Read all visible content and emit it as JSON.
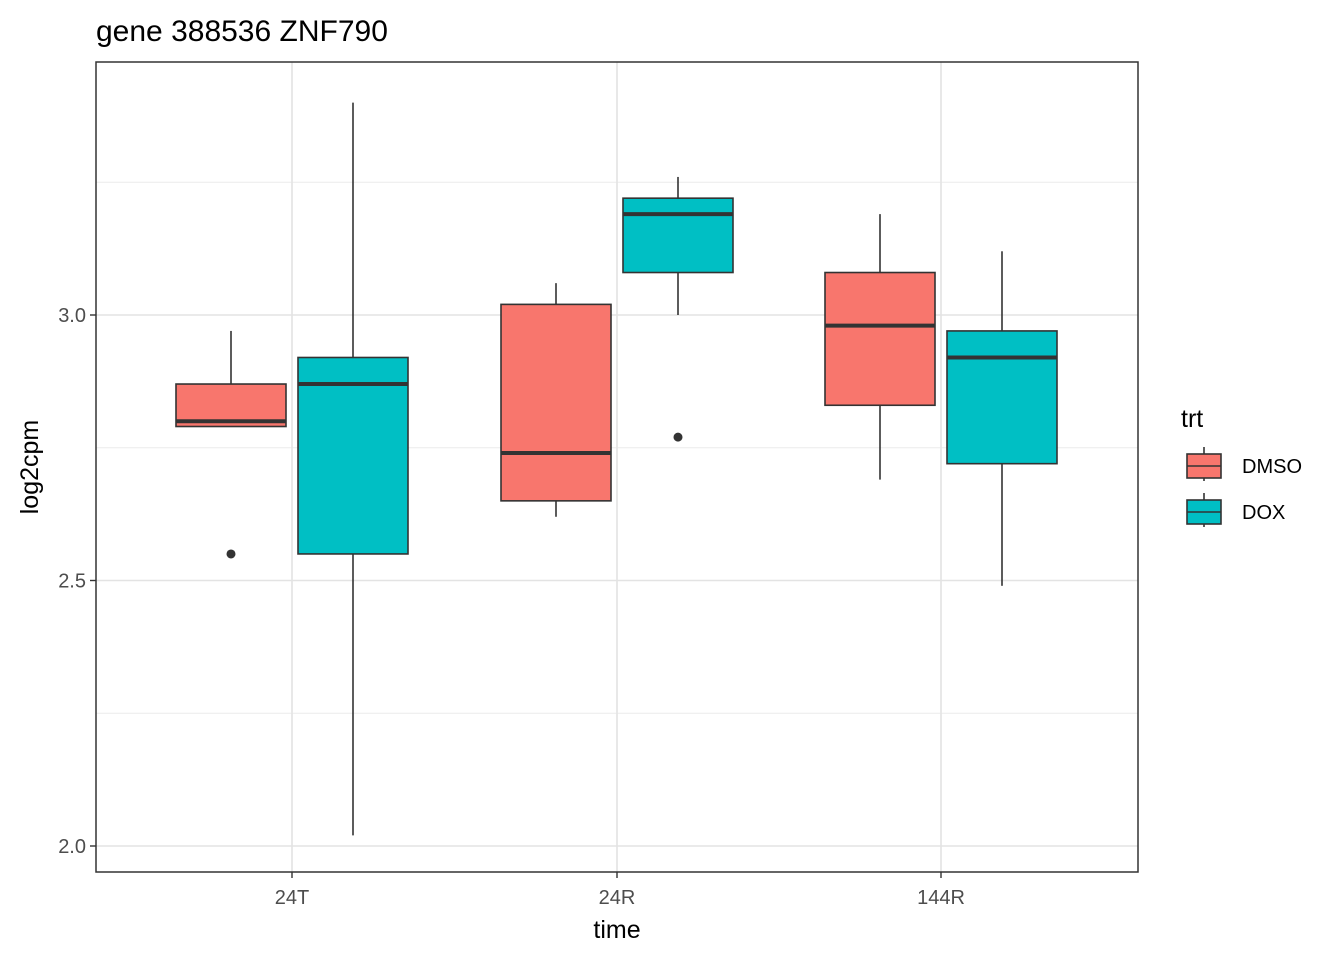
{
  "chart_data": {
    "type": "boxplot",
    "title": "gene 388536 ZNF790",
    "xlabel": "time",
    "ylabel": "log2cpm",
    "categories": [
      "24T",
      "24R",
      "144R"
    ],
    "yticks": [
      "2.0",
      "2.5",
      "3.0"
    ],
    "ylim": [
      1.95,
      3.47
    ],
    "grid": true,
    "legend": {
      "title": "trt",
      "position": "right",
      "entries": [
        "DMSO",
        "DOX"
      ]
    },
    "series": [
      {
        "name": "DMSO",
        "color": "#F8766D",
        "boxes": [
          {
            "category": "24T",
            "min": 2.79,
            "q1": 2.79,
            "median": 2.8,
            "q3": 2.87,
            "max": 2.97,
            "outliers": [
              2.55
            ]
          },
          {
            "category": "24R",
            "min": 2.62,
            "q1": 2.65,
            "median": 2.74,
            "q3": 3.02,
            "max": 3.06,
            "outliers": []
          },
          {
            "category": "144R",
            "min": 2.69,
            "q1": 2.83,
            "median": 2.98,
            "q3": 3.08,
            "max": 3.19,
            "outliers": []
          }
        ]
      },
      {
        "name": "DOX",
        "color": "#00BFC4",
        "boxes": [
          {
            "category": "24T",
            "min": 2.02,
            "q1": 2.55,
            "median": 2.87,
            "q3": 2.92,
            "max": 3.4,
            "outliers": []
          },
          {
            "category": "24R",
            "min": 3.0,
            "q1": 3.08,
            "median": 3.19,
            "q3": 3.22,
            "max": 3.26,
            "outliers": [
              2.77
            ]
          },
          {
            "category": "144R",
            "min": 2.49,
            "q1": 2.72,
            "median": 2.92,
            "q3": 2.97,
            "max": 3.12,
            "outliers": []
          }
        ]
      }
    ]
  }
}
